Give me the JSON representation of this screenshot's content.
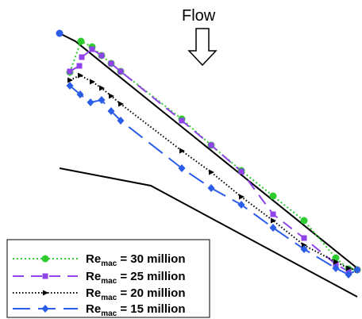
{
  "chart_data": {
    "type": "line",
    "annotation": "Flow",
    "legend_position": "bottom-left",
    "series": [
      {
        "name": "Re",
        "subscript": "mac",
        "suffix": " = 30 million",
        "color": "#2ecc2e",
        "dash": "2,3",
        "marker": "circle",
        "points": [
          [
            88,
            91
          ],
          [
            102,
            52
          ],
          [
            116,
            59
          ],
          [
            128,
            70
          ],
          [
            140,
            80
          ],
          [
            152,
            90
          ],
          [
            229,
            150
          ],
          [
            266,
            183
          ],
          [
            304,
            215
          ],
          [
            344,
            247
          ],
          [
            383,
            278
          ],
          [
            423,
            325
          ],
          [
            439,
            339
          ],
          [
            450,
            340
          ]
        ]
      },
      {
        "name": "Re",
        "subscript": "mac",
        "suffix": " = 25 million",
        "color": "#8e44e8",
        "dash": "14,9",
        "marker": "square",
        "points": [
          [
            88,
            90
          ],
          [
            100,
            83
          ],
          [
            103,
            72
          ],
          [
            116,
            62
          ],
          [
            128,
            70
          ],
          [
            140,
            80
          ],
          [
            152,
            90
          ],
          [
            229,
            152
          ],
          [
            266,
            183
          ],
          [
            304,
            216
          ],
          [
            344,
            270
          ],
          [
            383,
            300
          ],
          [
            423,
            333
          ],
          [
            439,
            342
          ],
          [
            450,
            340
          ]
        ]
      },
      {
        "name": "Re",
        "subscript": "mac",
        "suffix": " = 20 million",
        "color": "#000000",
        "dash": "1.5,2.5",
        "marker": "triangle",
        "points": [
          [
            88,
            101
          ],
          [
            101,
            95
          ],
          [
            116,
            103
          ],
          [
            128,
            111
          ],
          [
            140,
            121
          ],
          [
            152,
            131
          ],
          [
            229,
            190
          ],
          [
            266,
            217
          ],
          [
            304,
            248
          ],
          [
            344,
            278
          ],
          [
            383,
            309
          ],
          [
            423,
            330
          ],
          [
            439,
            338
          ],
          [
            450,
            340
          ]
        ]
      },
      {
        "name": "Re",
        "subscript": "mac",
        "suffix": " = 15 million",
        "color": "#2a5de8",
        "dash": "22,10",
        "marker": "diamond",
        "points": [
          [
            88,
            108
          ],
          [
            101,
            119
          ],
          [
            114,
            129
          ],
          [
            128,
            126
          ],
          [
            140,
            140
          ],
          [
            152,
            152
          ],
          [
            229,
            212
          ],
          [
            266,
            237
          ],
          [
            304,
            258
          ],
          [
            344,
            287
          ],
          [
            383,
            314
          ],
          [
            423,
            338
          ],
          [
            439,
            346
          ],
          [
            450,
            340
          ]
        ]
      }
    ],
    "outline": {
      "top_edge": [
        [
          75,
          42
        ],
        [
          95,
          52
        ],
        [
          450,
          338
        ]
      ],
      "lower_body": [
        [
          75,
          212
        ],
        [
          190,
          234
        ],
        [
          450,
          374
        ]
      ]
    }
  }
}
